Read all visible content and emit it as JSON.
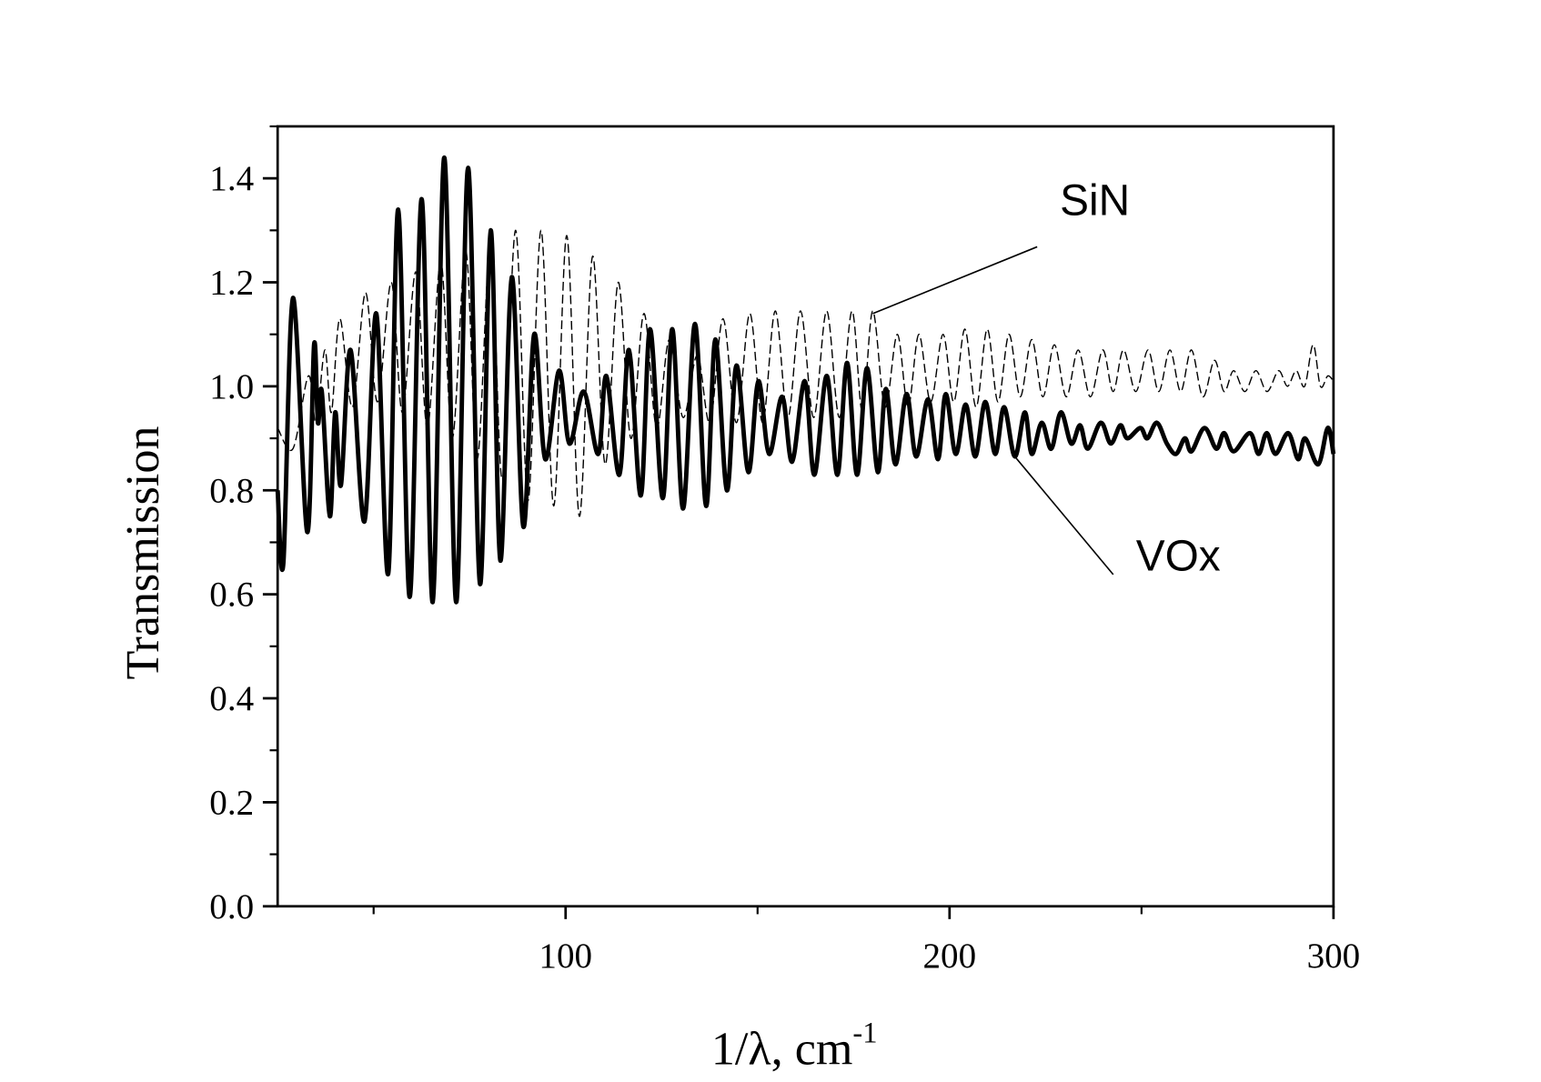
{
  "chart_data": {
    "type": "line",
    "title": "",
    "xlabel": "1/λ, cm",
    "xlabel_superscript": "-1",
    "ylabel": "Transmission",
    "xlim": [
      25,
      300
    ],
    "ylim": [
      0.0,
      1.5
    ],
    "x_ticks": [
      "100",
      "200",
      "300"
    ],
    "x_tick_values": [
      100,
      200,
      300
    ],
    "x_minor_ticks": [
      50,
      150,
      250
    ],
    "y_ticks": [
      "0.0",
      "0.2",
      "0.4",
      "0.6",
      "0.8",
      "1.0",
      "1.2",
      "1.4"
    ],
    "y_tick_values": [
      0,
      0.2,
      0.4,
      0.6,
      0.8,
      1.0,
      1.2,
      1.4
    ],
    "y_minor_ticks": [
      0.1,
      0.3,
      0.5,
      0.7,
      0.9,
      1.1,
      1.3,
      1.5
    ],
    "grid": false,
    "legend": "none (series labelled directly with leader lines)",
    "series": [
      {
        "name": "SiN",
        "style": "dashed thin",
        "color": "#000000",
        "label_anchor": [
          180,
          1.14
        ],
        "points": [
          [
            25,
            0.92
          ],
          [
            29,
            0.88
          ],
          [
            33,
            1.02
          ],
          [
            35,
            0.93
          ],
          [
            37.3,
            1.07
          ],
          [
            39,
            0.95
          ],
          [
            41.2,
            1.13
          ],
          [
            44.5,
            0.96
          ],
          [
            47.9,
            1.18
          ],
          [
            51,
            0.97
          ],
          [
            54.6,
            1.2
          ],
          [
            57.5,
            0.95
          ],
          [
            61,
            1.22
          ],
          [
            64,
            0.92
          ],
          [
            67.5,
            1.24
          ],
          [
            70.5,
            0.9
          ],
          [
            74,
            1.26
          ],
          [
            77,
            0.86
          ],
          [
            80.5,
            1.28
          ],
          [
            83.5,
            0.82
          ],
          [
            87,
            1.3
          ],
          [
            90.2,
            0.78
          ],
          [
            93.6,
            1.3
          ],
          [
            96.9,
            0.77
          ],
          [
            100.3,
            1.29
          ],
          [
            103.6,
            0.75
          ],
          [
            107,
            1.25
          ],
          [
            110.3,
            0.85
          ],
          [
            113.7,
            1.2
          ],
          [
            117,
            0.9
          ],
          [
            120.4,
            1.14
          ],
          [
            123.7,
            0.92
          ],
          [
            127,
            1.09
          ],
          [
            130.6,
            0.94
          ],
          [
            134.3,
            1.06
          ],
          [
            137.6,
            0.93
          ],
          [
            141,
            1.13
          ],
          [
            144.5,
            0.93
          ],
          [
            148,
            1.14
          ],
          [
            151.3,
            0.93
          ],
          [
            154.6,
            1.145
          ],
          [
            157.9,
            0.94
          ],
          [
            161.2,
            1.145
          ],
          [
            164.6,
            0.94
          ],
          [
            168,
            1.145
          ],
          [
            171.3,
            0.94
          ],
          [
            174.6,
            1.145
          ],
          [
            177.3,
            0.95
          ],
          [
            180,
            1.145
          ],
          [
            183.2,
            0.96
          ],
          [
            186.4,
            1.1
          ],
          [
            189.2,
            0.96
          ],
          [
            192,
            1.1
          ],
          [
            195.1,
            0.97
          ],
          [
            198.3,
            1.1
          ],
          [
            201.1,
            0.97
          ],
          [
            204,
            1.11
          ],
          [
            206.9,
            0.96
          ],
          [
            209.8,
            1.11
          ],
          [
            212.6,
            0.97
          ],
          [
            215.5,
            1.1
          ],
          [
            218.4,
            0.98
          ],
          [
            221.4,
            1.09
          ],
          [
            224.3,
            0.98
          ],
          [
            227.3,
            1.08
          ],
          [
            230.4,
            0.98
          ],
          [
            233.5,
            1.07
          ],
          [
            236.7,
            0.98
          ],
          [
            239.9,
            1.07
          ],
          [
            242.6,
            0.99
          ],
          [
            245.3,
            1.07
          ],
          [
            248.5,
            0.99
          ],
          [
            251.7,
            1.07
          ],
          [
            254.5,
            0.99
          ],
          [
            257.4,
            1.07
          ],
          [
            260.2,
            0.99
          ],
          [
            263,
            1.07
          ],
          [
            266,
            0.98
          ],
          [
            269,
            1.05
          ],
          [
            271.5,
            0.99
          ],
          [
            274,
            1.03
          ],
          [
            276.9,
            0.99
          ],
          [
            279.8,
            1.03
          ],
          [
            282.7,
            0.99
          ],
          [
            285.7,
            1.03
          ],
          [
            288,
            1.0
          ],
          [
            290.3,
            1.03
          ],
          [
            292.5,
            1.0
          ],
          [
            294.7,
            1.08
          ],
          [
            296.6,
            1.0
          ],
          [
            298.5,
            1.02
          ],
          [
            300,
            1.01
          ]
        ]
      },
      {
        "name": "VOx",
        "style": "solid thick",
        "color": "#000000",
        "label_anchor": [
          217,
          0.865
        ],
        "points": [
          [
            25,
            0.8
          ],
          [
            26.5,
            0.66
          ],
          [
            29,
            1.17
          ],
          [
            32.7,
            0.72
          ],
          [
            34.5,
            1.08
          ],
          [
            35.5,
            0.93
          ],
          [
            36.5,
            0.99
          ],
          [
            38.6,
            0.75
          ],
          [
            40,
            0.95
          ],
          [
            41.5,
            0.81
          ],
          [
            44,
            1.07
          ],
          [
            47.6,
            0.74
          ],
          [
            50.7,
            1.14
          ],
          [
            53.8,
            0.64
          ],
          [
            56.4,
            1.34
          ],
          [
            59.4,
            0.595
          ],
          [
            62.5,
            1.36
          ],
          [
            65.4,
            0.585
          ],
          [
            68.4,
            1.44
          ],
          [
            71.5,
            0.585
          ],
          [
            74.6,
            1.42
          ],
          [
            77.7,
            0.62
          ],
          [
            80.5,
            1.3
          ],
          [
            83,
            0.665
          ],
          [
            86,
            1.21
          ],
          [
            89,
            0.73
          ],
          [
            91.8,
            1.1
          ],
          [
            94.7,
            0.86
          ],
          [
            98.3,
            1.03
          ],
          [
            101,
            0.89
          ],
          [
            104.7,
            0.99
          ],
          [
            108.5,
            0.87
          ],
          [
            110.6,
            1.02
          ],
          [
            114,
            0.83
          ],
          [
            116.5,
            1.07
          ],
          [
            119.6,
            0.79
          ],
          [
            122,
            1.11
          ],
          [
            125.3,
            0.785
          ],
          [
            127.8,
            1.11
          ],
          [
            130.6,
            0.765
          ],
          [
            133.7,
            1.12
          ],
          [
            136.6,
            0.77
          ],
          [
            139,
            1.09
          ],
          [
            142,
            0.8
          ],
          [
            144.5,
            1.04
          ],
          [
            147.6,
            0.835
          ],
          [
            150.2,
            1.01
          ],
          [
            153,
            0.87
          ],
          [
            156.4,
            0.98
          ],
          [
            159,
            0.855
          ],
          [
            162.3,
            1.01
          ],
          [
            164.8,
            0.83
          ],
          [
            168,
            1.02
          ],
          [
            170.8,
            0.83
          ],
          [
            173.3,
            1.045
          ],
          [
            175.9,
            0.83
          ],
          [
            178.5,
            1.035
          ],
          [
            181.3,
            0.835
          ],
          [
            183.4,
            0.995
          ],
          [
            185.9,
            0.85
          ],
          [
            188.8,
            0.985
          ],
          [
            191.3,
            0.865
          ],
          [
            194.4,
            0.975
          ],
          [
            197,
            0.86
          ],
          [
            199,
            0.985
          ],
          [
            201.6,
            0.87
          ],
          [
            204.2,
            0.965
          ],
          [
            206.7,
            0.865
          ],
          [
            209.3,
            0.97
          ],
          [
            211.9,
            0.87
          ],
          [
            214.2,
            0.96
          ],
          [
            217,
            0.865
          ],
          [
            219.6,
            0.95
          ],
          [
            221.4,
            0.87
          ],
          [
            224,
            0.93
          ],
          [
            226.5,
            0.88
          ],
          [
            229,
            0.95
          ],
          [
            231.7,
            0.89
          ],
          [
            234,
            0.925
          ],
          [
            236,
            0.88
          ],
          [
            239.4,
            0.93
          ],
          [
            242,
            0.89
          ],
          [
            244.5,
            0.925
          ],
          [
            246.3,
            0.9
          ],
          [
            249.7,
            0.92
          ],
          [
            251.5,
            0.9
          ],
          [
            254,
            0.93
          ],
          [
            256.6,
            0.89
          ],
          [
            259,
            0.87
          ],
          [
            261.3,
            0.9
          ],
          [
            263,
            0.875
          ],
          [
            266.4,
            0.92
          ],
          [
            269.5,
            0.88
          ],
          [
            271.5,
            0.91
          ],
          [
            274,
            0.875
          ],
          [
            278.2,
            0.91
          ],
          [
            280.5,
            0.87
          ],
          [
            282.6,
            0.91
          ],
          [
            284.9,
            0.87
          ],
          [
            288.2,
            0.91
          ],
          [
            290.8,
            0.86
          ],
          [
            292.6,
            0.9
          ],
          [
            296,
            0.85
          ],
          [
            298.5,
            0.92
          ],
          [
            300,
            0.87
          ]
        ]
      }
    ]
  }
}
